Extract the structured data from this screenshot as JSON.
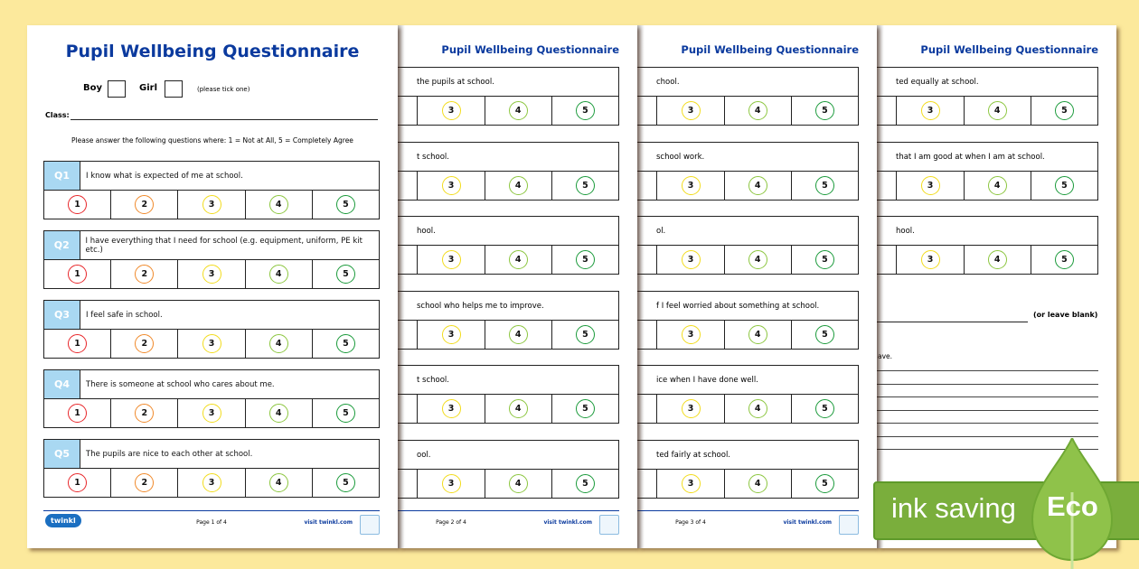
{
  "document_title": "Pupil Wellbeing Questionnaire",
  "page1": {
    "boy_label": "Boy",
    "girl_label": "Girl",
    "tick_hint": "(please tick one)",
    "class_label": "Class:",
    "instructions": "Please answer the following questions where: 1 = Not at All, 5 = Completely Agree",
    "questions": [
      {
        "label": "Q1",
        "text": "I know what is expected of me at school."
      },
      {
        "label": "Q2",
        "text": "I have everything that I need for school (e.g. equipment, uniform, PE kit etc.)"
      },
      {
        "label": "Q3",
        "text": "I feel safe in school."
      },
      {
        "label": "Q4",
        "text": "There is someone at school who cares about me."
      },
      {
        "label": "Q5",
        "text": "The pupils are nice to each other at school."
      }
    ],
    "page_number": "Page 1 of 4"
  },
  "page2": {
    "fragments": [
      "the pupils at school.",
      "t school.",
      "hool.",
      "school who helps me to improve.",
      "t school.",
      "ool."
    ],
    "page_number": "Page 2 of 4"
  },
  "page3": {
    "fragments": [
      "chool.",
      "school work.",
      "ol.",
      "f I feel worried about something at school.",
      "ice when I have done well.",
      "ted fairly at school."
    ],
    "page_number": "Page 3 of 4"
  },
  "page4": {
    "fragments": [
      "ted equally at school.",
      "that I am good at when I am at school.",
      "hool."
    ],
    "leave_blank": "(or leave blank)",
    "prompt_fragment": "ave."
  },
  "ratings": [
    "1",
    "2",
    "3",
    "4",
    "5"
  ],
  "rating_colors": [
    "#e8262a",
    "#f0892a",
    "#f2dc1c",
    "#8cc63f",
    "#1a9a3a"
  ],
  "footer": {
    "brand": "twinkl",
    "visit": "visit twinkl.com"
  },
  "eco_banner": {
    "text": "ink saving",
    "word": "Eco"
  }
}
